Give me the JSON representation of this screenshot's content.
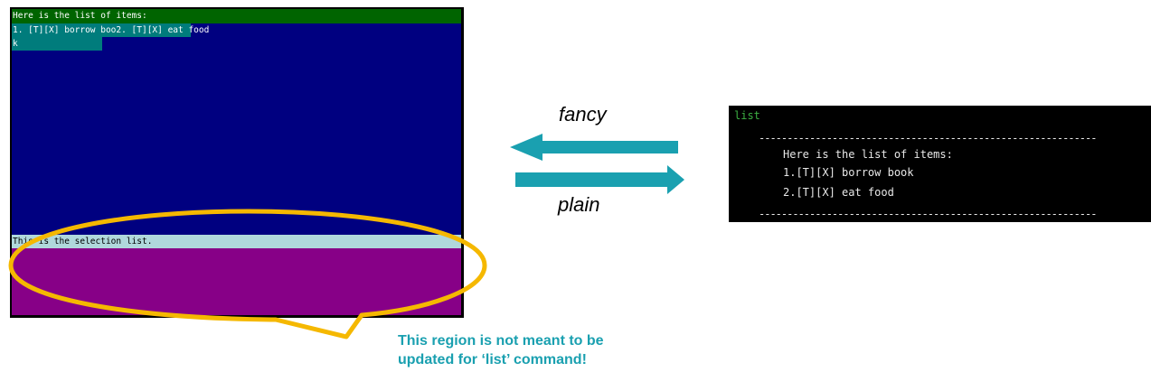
{
  "fancy_ui": {
    "header": "Here is the list of items:",
    "tile_line1_a": "1. [T][X] borrow boo",
    "tile_line1_b": "2. [T][X] eat food",
    "tile_line2": "k",
    "selection_label": "This is the selection list."
  },
  "arrows": {
    "fancy_label": "fancy",
    "plain_label": "plain",
    "color": "#1aa0b0"
  },
  "plain_ui": {
    "command": "list",
    "divider": "------------------------------------------------------------",
    "heading": "Here is the list of items:",
    "items": [
      "1.[T][X] borrow book",
      "2.[T][X] eat food"
    ]
  },
  "callout": {
    "line1": "This region is not meant to be",
    "line2": "updated for ‘list’ command!",
    "color": "#f5b800"
  },
  "colors": {
    "header_green": "#006400",
    "main_blue": "#000080",
    "tile_teal": "#007c7c",
    "selection_label_bg": "#b0d8dc",
    "selection_region": "#870087",
    "note_text": "#1aa0b0"
  }
}
